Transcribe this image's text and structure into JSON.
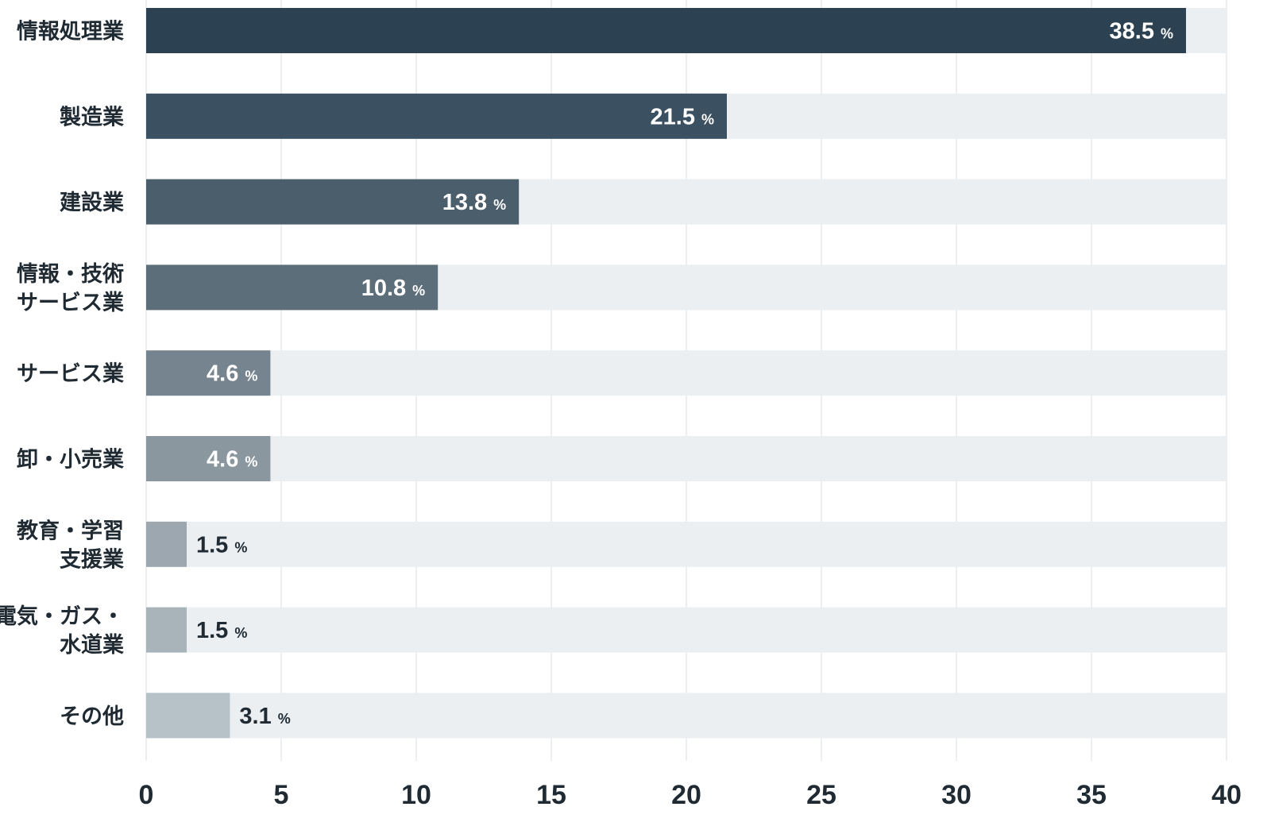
{
  "chart_data": {
    "type": "bar",
    "orientation": "horizontal",
    "categories": [
      [
        "情報処理業"
      ],
      [
        "製造業"
      ],
      [
        "建設業"
      ],
      [
        "情報・技術",
        "サービス業"
      ],
      [
        "サービス業"
      ],
      [
        "卸・小売業"
      ],
      [
        "教育・学習",
        "支援業"
      ],
      [
        "電気・ガス・",
        "水道業"
      ],
      [
        "その他"
      ]
    ],
    "values": [
      38.5,
      21.5,
      13.8,
      10.8,
      4.6,
      4.6,
      1.5,
      1.5,
      3.1
    ],
    "value_labels": [
      "38.5",
      "21.5",
      "13.8",
      "10.8",
      "4.6",
      "4.6",
      "1.5",
      "1.5",
      "3.1"
    ],
    "value_unit": "%",
    "xlim": [
      0,
      40
    ],
    "xticks": [
      "0",
      "5",
      "10",
      "15",
      "20",
      "25",
      "30",
      "35",
      "40"
    ],
    "grid": true,
    "legend": "none",
    "colors": {
      "bars": [
        "#2c4151",
        "#3b5061",
        "#4b5e6c",
        "#5d6e7b",
        "#75848f",
        "#8a979f",
        "#9ca7af",
        "#a8b3ba",
        "#b6c1c8"
      ],
      "track": "#ebeff2",
      "grid": "#e6e9ec",
      "label_inside": "#ffffff",
      "label_outside": "#1f2a33"
    }
  }
}
